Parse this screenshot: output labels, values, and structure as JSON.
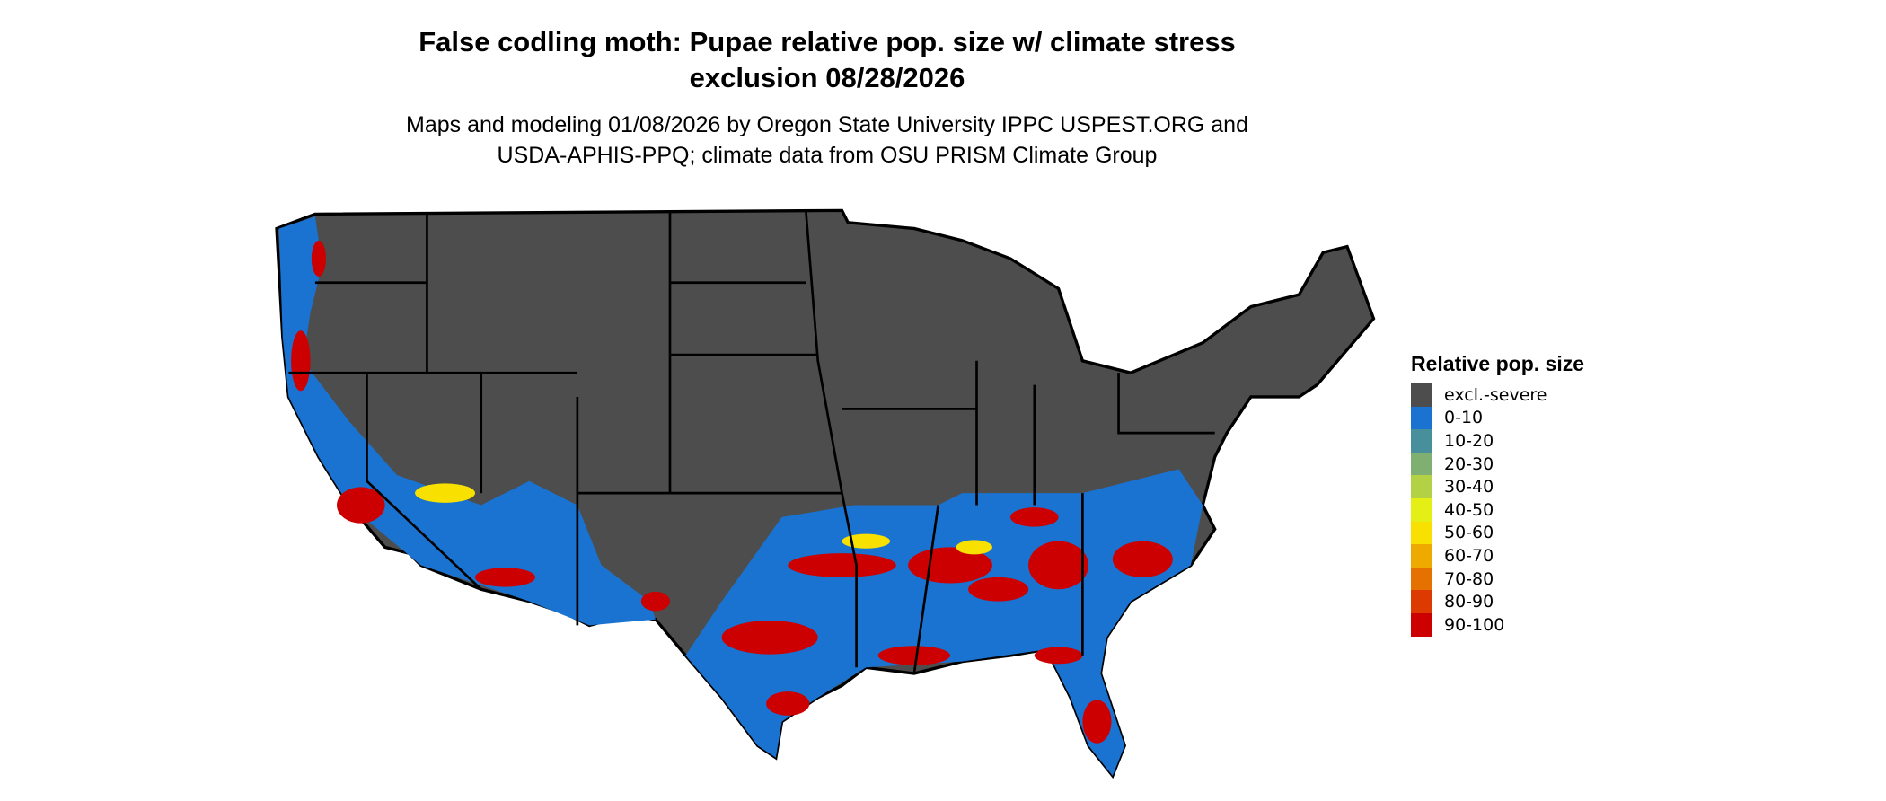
{
  "title_line1": "False codling moth: Pupae relative pop. size w/ climate stress",
  "title_line2": "exclusion 08/28/2026",
  "subtitle_line1": "Maps and modeling 01/08/2026 by Oregon State University IPPC USPEST.ORG and",
  "subtitle_line2": "USDA-APHIS-PPQ; climate data from OSU PRISM Climate Group",
  "legend": {
    "title": "Relative pop. size",
    "items": [
      {
        "label": "excl.-severe",
        "color": "#4d4d4d"
      },
      {
        "label": "0-10",
        "color": "#1a73d0"
      },
      {
        "label": "10-20",
        "color": "#47909b"
      },
      {
        "label": "20-30",
        "color": "#7fb071"
      },
      {
        "label": "30-40",
        "color": "#b2d145"
      },
      {
        "label": "40-50",
        "color": "#e4f015"
      },
      {
        "label": "50-60",
        "color": "#f8e100"
      },
      {
        "label": "60-70",
        "color": "#efaa00"
      },
      {
        "label": "70-80",
        "color": "#e57200"
      },
      {
        "label": "80-90",
        "color": "#dc3a00"
      },
      {
        "label": "90-100",
        "color": "#cc0000"
      }
    ]
  }
}
